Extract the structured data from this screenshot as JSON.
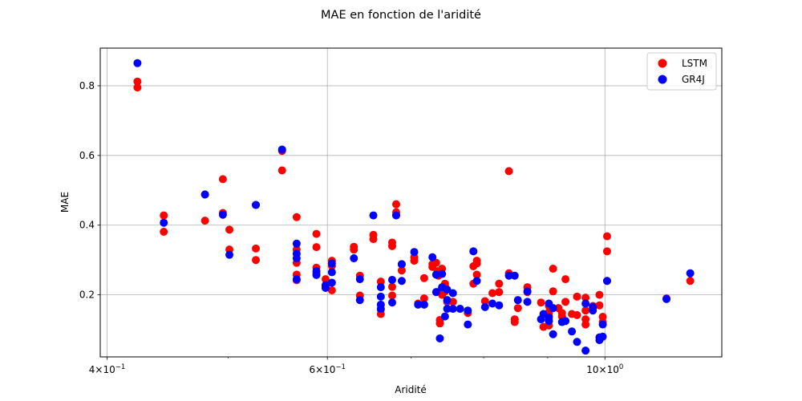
{
  "chart_data": {
    "type": "scatter",
    "title": "MAE en fonction de l'aridité",
    "xlabel": "Aridité",
    "ylabel": "MAE",
    "xscale": "log",
    "xlim": [
      0.395,
      1.24
    ],
    "ylim": [
      0.022,
      0.908
    ],
    "x_ticks": [
      {
        "value": 0.4,
        "base": "4",
        "exp": "−1"
      },
      {
        "value": 0.6,
        "base": "6",
        "exp": "−1"
      },
      {
        "value": 1.0,
        "base": "10",
        "exp": "0"
      }
    ],
    "x_minor_ticks": [
      0.5,
      0.7,
      0.8,
      0.9
    ],
    "y_ticks": [
      0.2,
      0.4,
      0.6,
      0.8
    ],
    "y_tick_labels": [
      "0.2",
      "0.4",
      "0.6",
      "0.8"
    ],
    "grid": true,
    "legend_position": "upper right",
    "series": [
      {
        "name": "LSTM",
        "color": "#ff0000",
        "points": [
          [
            0.423,
            0.812
          ],
          [
            0.423,
            0.795
          ],
          [
            0.444,
            0.428
          ],
          [
            0.444,
            0.381
          ],
          [
            0.479,
            0.413
          ],
          [
            0.479,
            0.488
          ],
          [
            0.495,
            0.532
          ],
          [
            0.495,
            0.435
          ],
          [
            0.501,
            0.387
          ],
          [
            0.501,
            0.33
          ],
          [
            0.526,
            0.333
          ],
          [
            0.526,
            0.3
          ],
          [
            0.526,
            0.458
          ],
          [
            0.552,
            0.613
          ],
          [
            0.552,
            0.557
          ],
          [
            0.567,
            0.423
          ],
          [
            0.567,
            0.33
          ],
          [
            0.567,
            0.292
          ],
          [
            0.567,
            0.258
          ],
          [
            0.567,
            0.242
          ],
          [
            0.588,
            0.375
          ],
          [
            0.588,
            0.337
          ],
          [
            0.588,
            0.278
          ],
          [
            0.588,
            0.262
          ],
          [
            0.598,
            0.245
          ],
          [
            0.598,
            0.225
          ],
          [
            0.605,
            0.298
          ],
          [
            0.605,
            0.283
          ],
          [
            0.605,
            0.213
          ],
          [
            0.63,
            0.338
          ],
          [
            0.63,
            0.33
          ],
          [
            0.637,
            0.255
          ],
          [
            0.637,
            0.198
          ],
          [
            0.653,
            0.372
          ],
          [
            0.653,
            0.36
          ],
          [
            0.662,
            0.238
          ],
          [
            0.662,
            0.158
          ],
          [
            0.662,
            0.145
          ],
          [
            0.676,
            0.35
          ],
          [
            0.676,
            0.34
          ],
          [
            0.676,
            0.223
          ],
          [
            0.676,
            0.198
          ],
          [
            0.681,
            0.46
          ],
          [
            0.681,
            0.437
          ],
          [
            0.681,
            0.43
          ],
          [
            0.688,
            0.288
          ],
          [
            0.688,
            0.27
          ],
          [
            0.704,
            0.308
          ],
          [
            0.704,
            0.298
          ],
          [
            0.709,
            0.175
          ],
          [
            0.717,
            0.248
          ],
          [
            0.717,
            0.19
          ],
          [
            0.728,
            0.288
          ],
          [
            0.728,
            0.28
          ],
          [
            0.733,
            0.292
          ],
          [
            0.735,
            0.268
          ],
          [
            0.736,
            0.255
          ],
          [
            0.738,
            0.21
          ],
          [
            0.738,
            0.128
          ],
          [
            0.738,
            0.118
          ],
          [
            0.741,
            0.275
          ],
          [
            0.741,
            0.2
          ],
          [
            0.745,
            0.232
          ],
          [
            0.745,
            0.225
          ],
          [
            0.745,
            0.21
          ],
          [
            0.748,
            0.18
          ],
          [
            0.756,
            0.18
          ],
          [
            0.777,
            0.148
          ],
          [
            0.785,
            0.282
          ],
          [
            0.785,
            0.232
          ],
          [
            0.79,
            0.298
          ],
          [
            0.79,
            0.29
          ],
          [
            0.79,
            0.258
          ],
          [
            0.802,
            0.182
          ],
          [
            0.813,
            0.205
          ],
          [
            0.823,
            0.232
          ],
          [
            0.823,
            0.208
          ],
          [
            0.838,
            0.555
          ],
          [
            0.838,
            0.262
          ],
          [
            0.847,
            0.13
          ],
          [
            0.847,
            0.122
          ],
          [
            0.852,
            0.162
          ],
          [
            0.867,
            0.222
          ],
          [
            0.867,
            0.208
          ],
          [
            0.889,
            0.178
          ],
          [
            0.893,
            0.108
          ],
          [
            0.902,
            0.168
          ],
          [
            0.902,
            0.15
          ],
          [
            0.902,
            0.14
          ],
          [
            0.902,
            0.125
          ],
          [
            0.902,
            0.112
          ],
          [
            0.909,
            0.275
          ],
          [
            0.909,
            0.21
          ],
          [
            0.918,
            0.162
          ],
          [
            0.924,
            0.148
          ],
          [
            0.924,
            0.138
          ],
          [
            0.93,
            0.245
          ],
          [
            0.93,
            0.18
          ],
          [
            0.941,
            0.145
          ],
          [
            0.95,
            0.195
          ],
          [
            0.95,
            0.142
          ],
          [
            0.965,
            0.192
          ],
          [
            0.965,
            0.155
          ],
          [
            0.965,
            0.13
          ],
          [
            0.965,
            0.115
          ],
          [
            0.978,
            0.16
          ],
          [
            0.978,
            0.168
          ],
          [
            0.99,
            0.2
          ],
          [
            0.99,
            0.17
          ],
          [
            0.996,
            0.137
          ],
          [
            0.996,
            0.122
          ],
          [
            1.004,
            0.368
          ],
          [
            1.004,
            0.325
          ],
          [
            1.004,
            0.24
          ],
          [
            1.12,
            0.19
          ],
          [
            1.17,
            0.24
          ]
        ]
      },
      {
        "name": "GR4J",
        "color": "#0000ff",
        "points": [
          [
            0.423,
            0.865
          ],
          [
            0.444,
            0.407
          ],
          [
            0.479,
            0.488
          ],
          [
            0.495,
            0.43
          ],
          [
            0.501,
            0.315
          ],
          [
            0.526,
            0.458
          ],
          [
            0.552,
            0.617
          ],
          [
            0.567,
            0.347
          ],
          [
            0.567,
            0.318
          ],
          [
            0.567,
            0.305
          ],
          [
            0.567,
            0.245
          ],
          [
            0.588,
            0.268
          ],
          [
            0.588,
            0.257
          ],
          [
            0.598,
            0.228
          ],
          [
            0.598,
            0.22
          ],
          [
            0.605,
            0.29
          ],
          [
            0.605,
            0.265
          ],
          [
            0.605,
            0.235
          ],
          [
            0.63,
            0.305
          ],
          [
            0.637,
            0.185
          ],
          [
            0.637,
            0.245
          ],
          [
            0.653,
            0.428
          ],
          [
            0.662,
            0.222
          ],
          [
            0.662,
            0.195
          ],
          [
            0.662,
            0.172
          ],
          [
            0.662,
            0.16
          ],
          [
            0.676,
            0.243
          ],
          [
            0.676,
            0.178
          ],
          [
            0.681,
            0.428
          ],
          [
            0.688,
            0.288
          ],
          [
            0.688,
            0.24
          ],
          [
            0.704,
            0.323
          ],
          [
            0.709,
            0.172
          ],
          [
            0.717,
            0.172
          ],
          [
            0.728,
            0.308
          ],
          [
            0.733,
            0.258
          ],
          [
            0.733,
            0.208
          ],
          [
            0.738,
            0.075
          ],
          [
            0.741,
            0.26
          ],
          [
            0.741,
            0.222
          ],
          [
            0.745,
            0.138
          ],
          [
            0.748,
            0.215
          ],
          [
            0.748,
            0.185
          ],
          [
            0.748,
            0.16
          ],
          [
            0.756,
            0.205
          ],
          [
            0.756,
            0.16
          ],
          [
            0.766,
            0.16
          ],
          [
            0.777,
            0.115
          ],
          [
            0.777,
            0.155
          ],
          [
            0.785,
            0.325
          ],
          [
            0.79,
            0.24
          ],
          [
            0.802,
            0.165
          ],
          [
            0.813,
            0.175
          ],
          [
            0.823,
            0.17
          ],
          [
            0.838,
            0.255
          ],
          [
            0.847,
            0.255
          ],
          [
            0.852,
            0.185
          ],
          [
            0.867,
            0.21
          ],
          [
            0.867,
            0.18
          ],
          [
            0.889,
            0.13
          ],
          [
            0.893,
            0.145
          ],
          [
            0.902,
            0.175
          ],
          [
            0.902,
            0.135
          ],
          [
            0.902,
            0.125
          ],
          [
            0.909,
            0.087
          ],
          [
            0.909,
            0.162
          ],
          [
            0.924,
            0.122
          ],
          [
            0.93,
            0.125
          ],
          [
            0.941,
            0.095
          ],
          [
            0.95,
            0.065
          ],
          [
            0.965,
            0.04
          ],
          [
            0.965,
            0.175
          ],
          [
            0.978,
            0.165
          ],
          [
            0.978,
            0.155
          ],
          [
            0.99,
            0.07
          ],
          [
            0.99,
            0.078
          ],
          [
            0.996,
            0.115
          ],
          [
            0.996,
            0.08
          ],
          [
            1.004,
            0.24
          ],
          [
            1.12,
            0.188
          ],
          [
            1.17,
            0.262
          ]
        ]
      }
    ]
  }
}
